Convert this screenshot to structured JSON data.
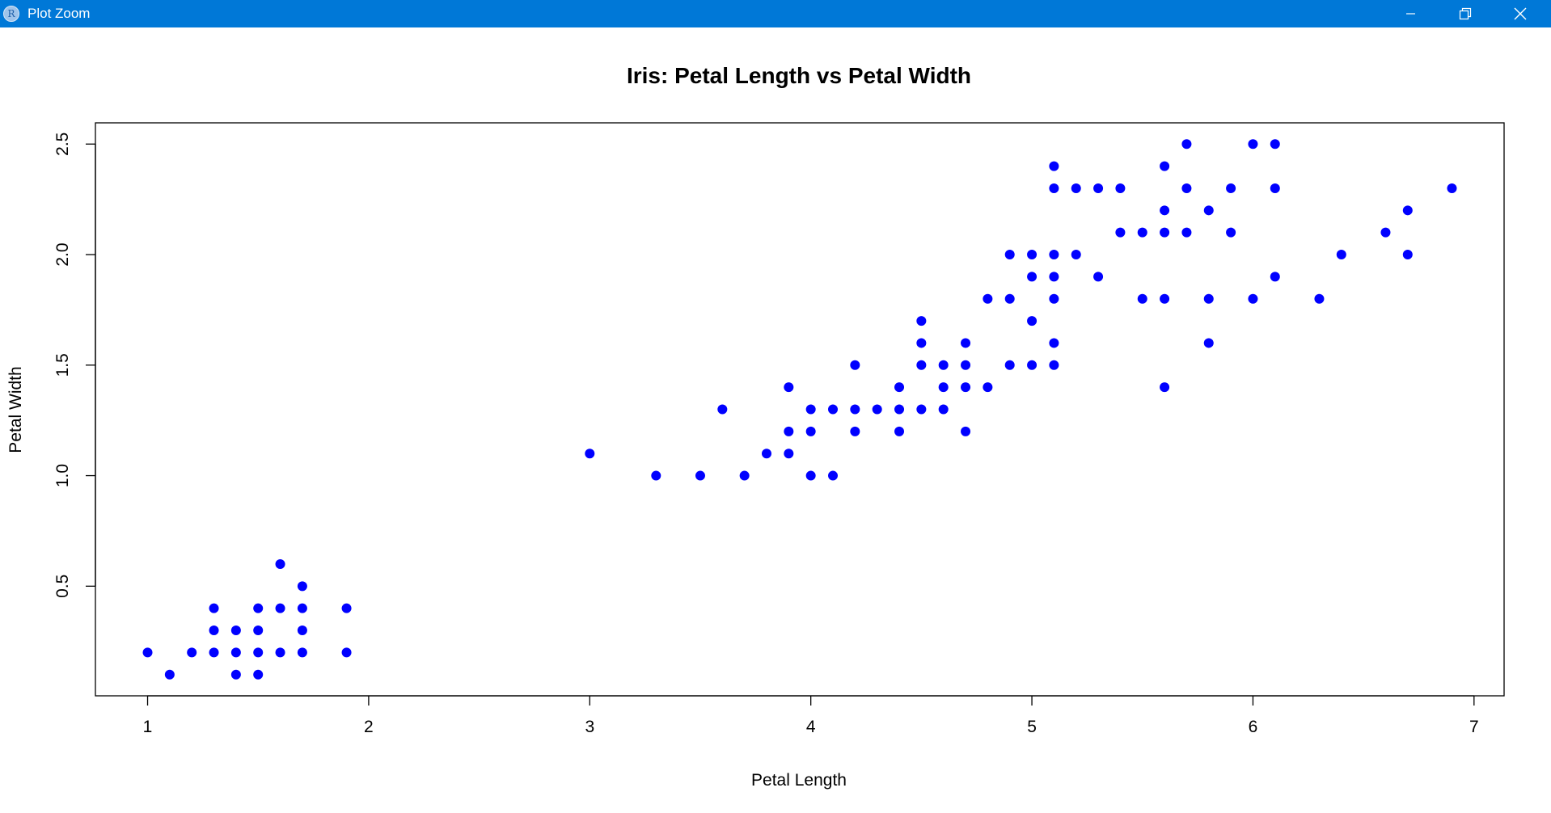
{
  "window": {
    "title": "Plot Zoom",
    "app_icon_letter": "R",
    "app_icon": "r-logo-icon",
    "controls": {
      "minimize_icon": "minimize-icon",
      "restore_icon": "restore-icon",
      "close_icon": "close-icon"
    },
    "titlebar_color": "#0078d7"
  },
  "chart_data": {
    "type": "scatter",
    "title": "Iris: Petal Length vs Petal Width",
    "xlabel": "Petal Length",
    "ylabel": "Petal Width",
    "xlim": [
      0.764,
      7.136
    ],
    "ylim": [
      0.004,
      2.596
    ],
    "xticks": [
      "1",
      "2",
      "3",
      "4",
      "5",
      "6",
      "7"
    ],
    "yticks": [
      "0.5",
      "1.0",
      "1.5",
      "2.0",
      "2.5"
    ],
    "marker_color": "#0000ff",
    "grid": false,
    "series": [
      {
        "points": [
          [
            1.0,
            0.2
          ],
          [
            1.1,
            0.1
          ],
          [
            1.2,
            0.2
          ],
          [
            1.3,
            0.2
          ],
          [
            1.3,
            0.3
          ],
          [
            1.3,
            0.4
          ],
          [
            1.4,
            0.1
          ],
          [
            1.4,
            0.2
          ],
          [
            1.4,
            0.3
          ],
          [
            1.5,
            0.1
          ],
          [
            1.5,
            0.2
          ],
          [
            1.5,
            0.3
          ],
          [
            1.5,
            0.4
          ],
          [
            1.6,
            0.2
          ],
          [
            1.6,
            0.4
          ],
          [
            1.6,
            0.6
          ],
          [
            1.7,
            0.2
          ],
          [
            1.7,
            0.3
          ],
          [
            1.7,
            0.4
          ],
          [
            1.7,
            0.5
          ],
          [
            1.9,
            0.2
          ],
          [
            1.9,
            0.4
          ],
          [
            3.0,
            1.1
          ],
          [
            3.3,
            1.0
          ],
          [
            3.5,
            1.0
          ],
          [
            3.6,
            1.3
          ],
          [
            3.7,
            1.0
          ],
          [
            3.8,
            1.1
          ],
          [
            3.9,
            1.1
          ],
          [
            3.9,
            1.2
          ],
          [
            3.9,
            1.4
          ],
          [
            4.0,
            1.0
          ],
          [
            4.0,
            1.2
          ],
          [
            4.0,
            1.3
          ],
          [
            4.1,
            1.0
          ],
          [
            4.1,
            1.3
          ],
          [
            4.2,
            1.2
          ],
          [
            4.2,
            1.3
          ],
          [
            4.2,
            1.5
          ],
          [
            4.3,
            1.3
          ],
          [
            4.4,
            1.2
          ],
          [
            4.4,
            1.3
          ],
          [
            4.4,
            1.4
          ],
          [
            4.5,
            1.3
          ],
          [
            4.5,
            1.5
          ],
          [
            4.5,
            1.6
          ],
          [
            4.5,
            1.7
          ],
          [
            4.6,
            1.3
          ],
          [
            4.6,
            1.4
          ],
          [
            4.6,
            1.5
          ],
          [
            4.7,
            1.2
          ],
          [
            4.7,
            1.4
          ],
          [
            4.7,
            1.5
          ],
          [
            4.7,
            1.6
          ],
          [
            4.8,
            1.4
          ],
          [
            4.8,
            1.8
          ],
          [
            4.9,
            1.5
          ],
          [
            4.9,
            1.8
          ],
          [
            4.9,
            2.0
          ],
          [
            5.0,
            1.5
          ],
          [
            5.0,
            1.7
          ],
          [
            5.0,
            1.9
          ],
          [
            5.0,
            2.0
          ],
          [
            5.1,
            1.5
          ],
          [
            5.1,
            1.6
          ],
          [
            5.1,
            1.8
          ],
          [
            5.1,
            1.9
          ],
          [
            5.1,
            2.0
          ],
          [
            5.1,
            2.3
          ],
          [
            5.1,
            2.4
          ],
          [
            5.2,
            2.0
          ],
          [
            5.2,
            2.3
          ],
          [
            5.3,
            1.9
          ],
          [
            5.3,
            2.3
          ],
          [
            5.4,
            2.1
          ],
          [
            5.4,
            2.3
          ],
          [
            5.5,
            1.8
          ],
          [
            5.5,
            2.1
          ],
          [
            5.6,
            1.4
          ],
          [
            5.6,
            1.8
          ],
          [
            5.6,
            2.1
          ],
          [
            5.6,
            2.2
          ],
          [
            5.6,
            2.4
          ],
          [
            5.7,
            2.1
          ],
          [
            5.7,
            2.3
          ],
          [
            5.7,
            2.5
          ],
          [
            5.8,
            1.6
          ],
          [
            5.8,
            1.8
          ],
          [
            5.8,
            2.2
          ],
          [
            5.9,
            2.1
          ],
          [
            5.9,
            2.3
          ],
          [
            6.0,
            1.8
          ],
          [
            6.0,
            2.5
          ],
          [
            6.1,
            1.9
          ],
          [
            6.1,
            2.3
          ],
          [
            6.1,
            2.5
          ],
          [
            6.3,
            1.8
          ],
          [
            6.4,
            2.0
          ],
          [
            6.6,
            2.1
          ],
          [
            6.7,
            2.0
          ],
          [
            6.7,
            2.2
          ],
          [
            6.9,
            2.3
          ]
        ]
      }
    ]
  }
}
